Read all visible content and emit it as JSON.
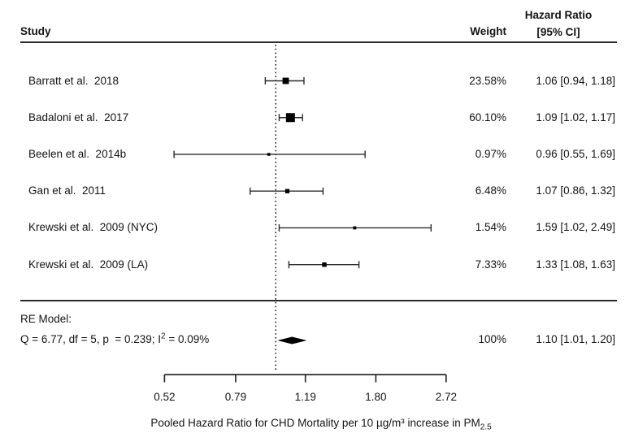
{
  "header": {
    "study_col": "Study",
    "weight_col": "Weight",
    "hr_col_line1": "Hazard Ratio",
    "hr_col_line2": "[95% CI]"
  },
  "colors": {
    "text": "#141414",
    "line": "#2b2b2b",
    "marker": "#000000"
  },
  "chart_data": {
    "type": "forest",
    "x_axis": {
      "scale": "log",
      "ticks": [
        0.52,
        0.79,
        1.19,
        1.8,
        2.72
      ],
      "tick_labels": [
        "0.52",
        "0.79",
        "1.19",
        "1.80",
        "2.72"
      ],
      "range": [
        0.52,
        2.72
      ],
      "reference_line": 1.0,
      "label_pre": "Pooled Hazard Ratio for CHD Mortality per 10 µg/m³ increase in PM",
      "label_sub": "2.5"
    },
    "studies": [
      {
        "label": "Barratt et al.  2018",
        "weight_label": "23.58%",
        "weight": 23.58,
        "hr": 1.06,
        "ci_low": 0.94,
        "ci_high": 1.18,
        "annotation": "1.06 [0.94, 1.18]"
      },
      {
        "label": "Badaloni et al.  2017",
        "weight_label": "60.10%",
        "weight": 60.1,
        "hr": 1.09,
        "ci_low": 1.02,
        "ci_high": 1.17,
        "annotation": "1.09 [1.02, 1.17]"
      },
      {
        "label": "Beelen et al.  2014b",
        "weight_label": "0.97%",
        "weight": 0.97,
        "hr": 0.96,
        "ci_low": 0.55,
        "ci_high": 1.69,
        "annotation": "0.96 [0.55, 1.69]"
      },
      {
        "label": "Gan et al.  2011",
        "weight_label": "6.48%",
        "weight": 6.48,
        "hr": 1.07,
        "ci_low": 0.86,
        "ci_high": 1.32,
        "annotation": "1.07 [0.86, 1.32]"
      },
      {
        "label": "Krewski et al.  2009 (NYC)",
        "weight_label": "1.54%",
        "weight": 1.54,
        "hr": 1.59,
        "ci_low": 1.02,
        "ci_high": 2.49,
        "annotation": "1.59 [1.02, 2.49]"
      },
      {
        "label": "Krewski et al.  2009 (LA)",
        "weight_label": "7.33%",
        "weight": 7.33,
        "hr": 1.33,
        "ci_low": 1.08,
        "ci_high": 1.63,
        "annotation": "1.33 [1.08, 1.63]"
      }
    ],
    "summary": {
      "label_line1": "RE Model:",
      "stats_pre": "Q = 6.77, df = 5, p  = 0.239; I",
      "stats_sup": "2",
      "stats_post": " = 0.09%",
      "weight_label": "100%",
      "hr": 1.1,
      "ci_low": 1.01,
      "ci_high": 1.2,
      "annotation": "1.10 [1.01, 1.20]"
    }
  }
}
